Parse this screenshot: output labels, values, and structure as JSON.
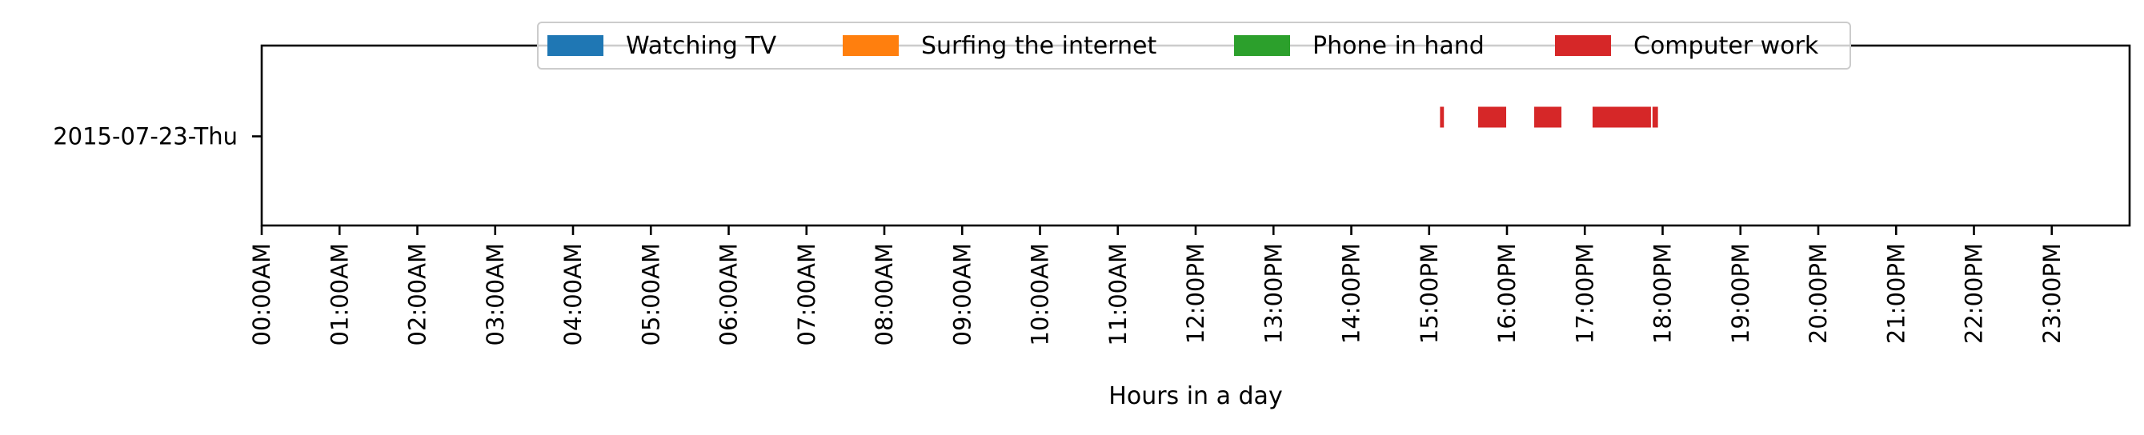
{
  "chart_data": {
    "type": "timeline",
    "xlabel": "Hours in a day",
    "ylabel": "",
    "xlim": [
      0,
      24
    ],
    "xticks": [
      {
        "value": 0,
        "label": "00:00AM"
      },
      {
        "value": 1,
        "label": "01:00AM"
      },
      {
        "value": 2,
        "label": "02:00AM"
      },
      {
        "value": 3,
        "label": "03:00AM"
      },
      {
        "value": 4,
        "label": "04:00AM"
      },
      {
        "value": 5,
        "label": "05:00AM"
      },
      {
        "value": 6,
        "label": "06:00AM"
      },
      {
        "value": 7,
        "label": "07:00AM"
      },
      {
        "value": 8,
        "label": "08:00AM"
      },
      {
        "value": 9,
        "label": "09:00AM"
      },
      {
        "value": 10,
        "label": "10:00AM"
      },
      {
        "value": 11,
        "label": "11:00AM"
      },
      {
        "value": 12,
        "label": "12:00PM"
      },
      {
        "value": 13,
        "label": "13:00PM"
      },
      {
        "value": 14,
        "label": "14:00PM"
      },
      {
        "value": 15,
        "label": "15:00PM"
      },
      {
        "value": 16,
        "label": "16:00PM"
      },
      {
        "value": 17,
        "label": "17:00PM"
      },
      {
        "value": 18,
        "label": "18:00PM"
      },
      {
        "value": 19,
        "label": "19:00PM"
      },
      {
        "value": 20,
        "label": "20:00PM"
      },
      {
        "value": 21,
        "label": "21:00PM"
      },
      {
        "value": 22,
        "label": "22:00PM"
      },
      {
        "value": 23,
        "label": "23:00PM"
      }
    ],
    "categories": [
      "2015-07-23-Thu"
    ],
    "legend_position": "top-center",
    "grid": false,
    "series": [
      {
        "name": "Watching TV",
        "color": "#1f77b4",
        "intervals": []
      },
      {
        "name": "Surfing the internet",
        "color": "#ff7f0e",
        "intervals": []
      },
      {
        "name": "Phone in hand",
        "color": "#2ca02c",
        "intervals": []
      },
      {
        "name": "Computer work",
        "color": "#d62728",
        "intervals": [
          {
            "category": "2015-07-23-Thu",
            "start": 15.14,
            "end": 15.19
          },
          {
            "category": "2015-07-23-Thu",
            "start": 15.63,
            "end": 15.99
          },
          {
            "category": "2015-07-23-Thu",
            "start": 16.35,
            "end": 16.7
          },
          {
            "category": "2015-07-23-Thu",
            "start": 17.1,
            "end": 17.85
          },
          {
            "category": "2015-07-23-Thu",
            "start": 17.87,
            "end": 17.94
          }
        ]
      }
    ]
  }
}
